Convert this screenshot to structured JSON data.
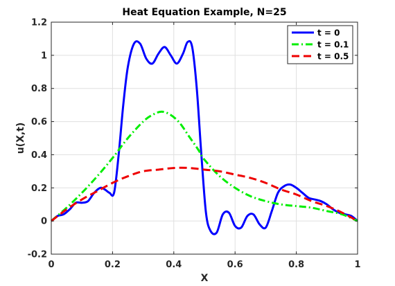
{
  "chart_data": {
    "type": "line",
    "title": "Heat Equation Example, N=25",
    "xlabel": "X",
    "ylabel": "u(X,t)",
    "xlim": [
      0,
      1
    ],
    "ylim": [
      -0.2,
      1.2
    ],
    "xticks": [
      0,
      0.2,
      0.4,
      0.6,
      0.8,
      1
    ],
    "xtick_labels": [
      "0",
      "0.2",
      "0.4",
      "0.6",
      "0.8",
      "1"
    ],
    "yticks": [
      -0.2,
      0,
      0.2,
      0.4,
      0.6,
      0.8,
      1,
      1.2
    ],
    "ytick_labels": [
      "-0.2",
      "0",
      "0.2",
      "0.4",
      "0.6",
      "0.8",
      "1",
      "1.2"
    ],
    "grid": true,
    "legend_position": "top-right",
    "series": [
      {
        "name": "t = 0",
        "color": "#0000ff",
        "style": "solid",
        "x": [
          0,
          0.02,
          0.04,
          0.06,
          0.08,
          0.1,
          0.12,
          0.14,
          0.16,
          0.175,
          0.19,
          0.205,
          0.22,
          0.235,
          0.25,
          0.27,
          0.29,
          0.31,
          0.33,
          0.35,
          0.37,
          0.39,
          0.41,
          0.43,
          0.445,
          0.46,
          0.475,
          0.49,
          0.505,
          0.52,
          0.54,
          0.56,
          0.58,
          0.6,
          0.62,
          0.64,
          0.66,
          0.68,
          0.7,
          0.72,
          0.74,
          0.76,
          0.78,
          0.8,
          0.82,
          0.84,
          0.86,
          0.88,
          0.9,
          0.92,
          0.94,
          0.96,
          0.98,
          1.0
        ],
        "y": [
          0,
          0.03,
          0.04,
          0.07,
          0.11,
          0.11,
          0.12,
          0.17,
          0.2,
          0.19,
          0.17,
          0.17,
          0.4,
          0.7,
          0.93,
          1.07,
          1.07,
          0.98,
          0.95,
          1.01,
          1.05,
          1.0,
          0.95,
          1.01,
          1.08,
          1.05,
          0.8,
          0.4,
          0.05,
          -0.06,
          -0.07,
          0.04,
          0.05,
          -0.03,
          -0.04,
          0.03,
          0.04,
          -0.02,
          -0.04,
          0.06,
          0.17,
          0.21,
          0.22,
          0.2,
          0.17,
          0.14,
          0.13,
          0.12,
          0.1,
          0.07,
          0.05,
          0.04,
          0.03,
          0.0
        ]
      },
      {
        "name": "t = 0.1",
        "color": "#00ee00",
        "style": "dashdot",
        "x": [
          0,
          0.05,
          0.1,
          0.15,
          0.2,
          0.25,
          0.3,
          0.33,
          0.36,
          0.39,
          0.42,
          0.45,
          0.48,
          0.5,
          0.55,
          0.6,
          0.65,
          0.7,
          0.75,
          0.8,
          0.85,
          0.9,
          0.95,
          1.0
        ],
        "y": [
          0,
          0.08,
          0.17,
          0.27,
          0.38,
          0.5,
          0.6,
          0.64,
          0.66,
          0.64,
          0.59,
          0.51,
          0.43,
          0.37,
          0.27,
          0.2,
          0.15,
          0.12,
          0.1,
          0.09,
          0.08,
          0.06,
          0.04,
          0.0
        ]
      },
      {
        "name": "t = 0.5",
        "color": "#ee0000",
        "style": "dashed",
        "x": [
          0,
          0.05,
          0.1,
          0.15,
          0.2,
          0.25,
          0.3,
          0.35,
          0.4,
          0.45,
          0.5,
          0.55,
          0.6,
          0.65,
          0.7,
          0.75,
          0.8,
          0.85,
          0.9,
          0.95,
          1.0
        ],
        "y": [
          0,
          0.07,
          0.13,
          0.18,
          0.23,
          0.27,
          0.3,
          0.31,
          0.32,
          0.32,
          0.31,
          0.3,
          0.28,
          0.26,
          0.23,
          0.19,
          0.16,
          0.12,
          0.09,
          0.05,
          0.0
        ]
      }
    ]
  }
}
